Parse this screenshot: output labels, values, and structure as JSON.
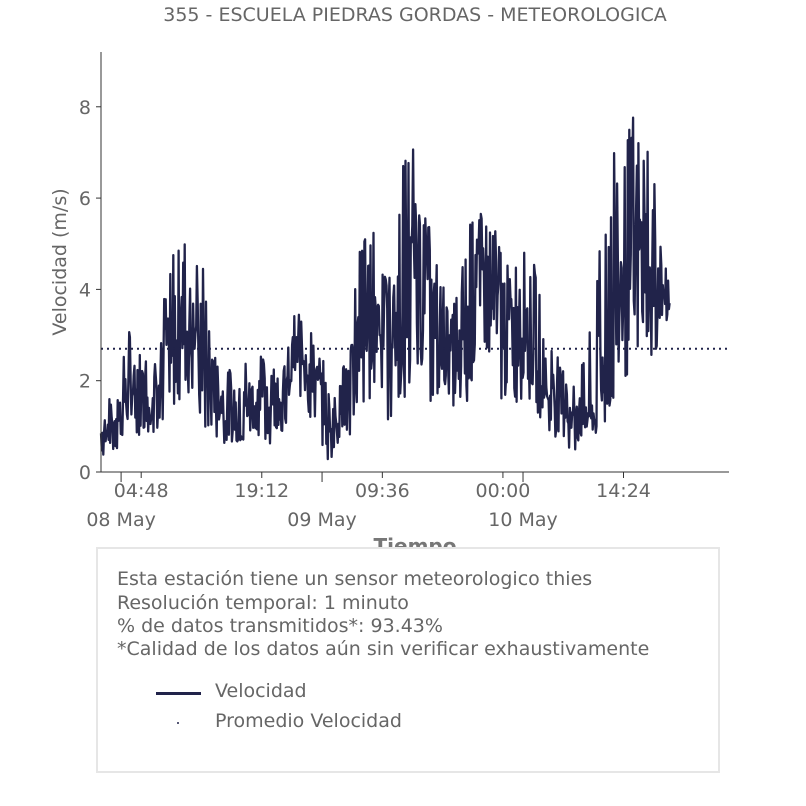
{
  "chart_data": {
    "type": "line",
    "title": "355 - ESCUELA PIEDRAS GORDAS - METEOROLOGICA",
    "xlabel": "Tiempo",
    "ylabel": "Velocidad (m/s)",
    "ylim": [
      0,
      9.2
    ],
    "yticks": [
      0,
      2,
      4,
      6,
      8
    ],
    "x_range_hours": [
      0,
      75
    ],
    "x_ticks": [
      {
        "hours": 4.8,
        "label": "04:48"
      },
      {
        "hours": 19.2,
        "label": "19:12"
      },
      {
        "hours": 33.6,
        "label": "09:36"
      },
      {
        "hours": 48.0,
        "label": "00:00"
      },
      {
        "hours": 62.4,
        "label": "14:24"
      }
    ],
    "x_date_labels": [
      {
        "hours": 2.4,
        "label": "08 May"
      },
      {
        "hours": 26.4,
        "label": "09 May"
      },
      {
        "hours": 50.4,
        "label": "10 May"
      }
    ],
    "grid": false,
    "series": [
      {
        "name": "Velocidad",
        "color": "#21234a",
        "style": "solid",
        "x_hours": [
          0,
          1,
          2,
          3,
          4,
          5,
          6,
          7,
          8,
          9,
          10,
          11,
          12,
          13,
          14,
          15,
          16,
          17,
          18,
          19,
          20,
          21,
          22,
          23,
          24,
          25,
          26,
          27,
          28,
          29,
          30,
          31,
          32,
          33,
          34,
          35,
          36,
          37,
          38,
          39,
          40,
          41,
          42,
          43,
          44,
          45,
          46,
          47,
          48,
          49,
          50,
          51,
          52,
          53,
          54,
          55,
          56,
          57,
          58,
          59,
          60,
          61,
          62,
          63,
          64,
          65,
          66,
          67,
          68
        ],
        "mean": [
          0.8,
          1.1,
          1.3,
          1.6,
          1.9,
          1.7,
          1.6,
          2.2,
          2.5,
          2.8,
          3.0,
          3.2,
          2.6,
          2.0,
          1.7,
          1.5,
          1.3,
          1.4,
          1.6,
          1.8,
          1.7,
          1.5,
          1.6,
          2.5,
          2.8,
          2.3,
          1.8,
          1.4,
          1.2,
          1.5,
          2.1,
          3.2,
          3.5,
          3.6,
          3.3,
          3.0,
          3.5,
          4.0,
          4.5,
          4.0,
          3.3,
          2.8,
          2.5,
          2.7,
          3.2,
          4.2,
          4.4,
          4.2,
          3.8,
          3.0,
          3.1,
          3.3,
          2.8,
          2.0,
          1.6,
          1.5,
          1.4,
          1.3,
          1.4,
          1.5,
          3.2,
          4.2,
          4.6,
          4.4,
          4.8,
          4.9,
          4.6,
          3.8,
          3.5
        ],
        "max": [
          1.7,
          1.6,
          1.8,
          3.3,
          2.7,
          3.0,
          2.5,
          3.4,
          4.5,
          5.3,
          5.4,
          4.0,
          5.2,
          3.0,
          2.6,
          2.2,
          2.3,
          2.4,
          2.8,
          2.6,
          2.5,
          2.7,
          2.4,
          3.4,
          3.6,
          3.1,
          2.6,
          2.3,
          2.1,
          2.8,
          3.7,
          5.4,
          5.8,
          5.1,
          4.5,
          4.8,
          6.8,
          7.5,
          6.4,
          5.9,
          4.6,
          4.1,
          3.7,
          4.3,
          6.3,
          6.1,
          5.9,
          5.5,
          5.2,
          4.3,
          5.4,
          5.0,
          4.4,
          3.2,
          2.7,
          2.5,
          2.4,
          2.3,
          2.7,
          3.8,
          7.5,
          7.5,
          7.5,
          8.4,
          7.3,
          7.5,
          6.5,
          4.8,
          4.5
        ],
        "min": [
          0.3,
          0.5,
          0.5,
          0.7,
          1.0,
          0.5,
          0.7,
          1.0,
          1.3,
          1.0,
          1.5,
          1.7,
          1.0,
          0.6,
          0.4,
          0.4,
          0.4,
          0.5,
          0.8,
          0.7,
          0.6,
          0.7,
          0.8,
          1.4,
          1.6,
          1.0,
          0.6,
          0.2,
          0.3,
          0.4,
          0.8,
          1.3,
          1.5,
          1.3,
          1.0,
          1.2,
          1.5,
          1.8,
          2.0,
          1.5,
          1.5,
          1.8,
          1.4,
          1.3,
          1.5,
          2.1,
          2.0,
          1.5,
          1.4,
          1.3,
          1.5,
          1.6,
          1.2,
          1.0,
          0.6,
          0.4,
          0.3,
          0.6,
          0.7,
          0.8,
          1.0,
          1.2,
          1.5,
          2.0,
          2.5,
          2.5,
          2.3,
          2.6,
          3.8
        ]
      },
      {
        "name": "Promedio Velocidad",
        "color": "#21234a",
        "style": "dotted",
        "value": 2.7
      }
    ],
    "legend": {
      "placement": "bottom",
      "entries": [
        "Velocidad",
        "Promedio Velocidad"
      ]
    }
  },
  "info": {
    "line1": "Esta estación tiene un sensor meteorologico thies",
    "line2": "Resolución temporal: 1 minuto",
    "line3": "% de datos transmitidos*: 93.43%",
    "line4": "*Calidad de los datos aún sin verificar exhaustivamente"
  },
  "legend_labels": {
    "velocidad": "Velocidad",
    "promedio": "Promedio Velocidad"
  }
}
